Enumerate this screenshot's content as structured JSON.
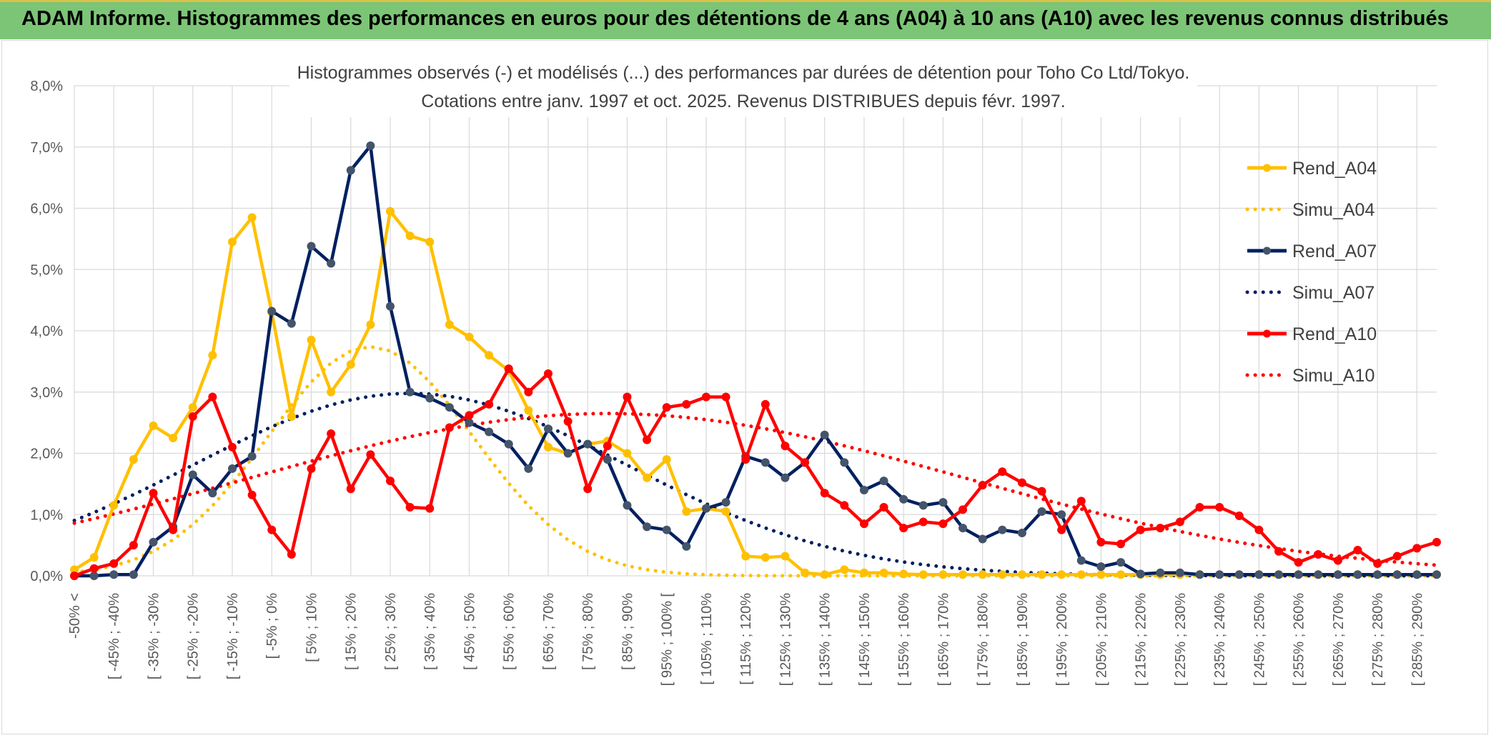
{
  "header": {
    "title": "ADAM Informe. Histogrammes des performances en euros pour des détentions de 4 ans (A04) à 10 ans (A10) avec les revenus connus distribués"
  },
  "chart_data": {
    "type": "line",
    "title_lines": [
      "Histogrammes observés (-) et modélisés (...) des performances par durées de détention pour Toho Co Ltd/Tokyo.",
      "Cotations entre janv. 1997 et oct. 2025. Revenus DISTRIBUES depuis févr. 1997."
    ],
    "xlabel": "",
    "ylabel": "",
    "ylim": [
      0,
      8
    ],
    "yticks": [
      "0,0%",
      "1,0%",
      "2,0%",
      "3,0%",
      "4,0%",
      "5,0%",
      "6,0%",
      "7,0%",
      "8,0%"
    ],
    "grid": true,
    "legend_position": "right",
    "x_labels": [
      "-50% <",
      "[ -45% ; -40%",
      "[ -35% ; -30%",
      "[ -25% ; -20%",
      "[ -15% ; -10%",
      "[ -5% ; 0%",
      "[ 5% ; 10%",
      "[ 15% ; 20%",
      "[ 25% ; 30%",
      "[ 35% ; 40%",
      "[ 45% ; 50%",
      "[ 55% ; 60%",
      "[ 65% ; 70%",
      "[ 75% ; 80%",
      "[ 85% ; 90%",
      "[ 95% ; 100% [",
      "[ 105% ; 110%",
      "[ 115% ; 120%",
      "[ 125% ; 130%",
      "[ 135% ; 140%",
      "[ 145% ; 150%",
      "[ 155% ; 160%",
      "[ 165% ; 170%",
      "[ 175% ; 180%",
      "[ 185% ; 190%",
      "[ 195% ; 200%",
      "[ 205% ; 210%",
      "[ 215% ; 220%",
      "[ 225% ; 230%",
      "[ 235% ; 240%",
      "[ 245% ; 250%",
      "[ 255% ; 260%",
      "[ 265% ; 270%",
      "[ 275% ; 280%",
      "[ 285% ; 290%"
    ],
    "series": [
      {
        "name": "Rend_A04",
        "style": "solid",
        "color": "#ffc000",
        "marker_color": "#ffc000",
        "values": [
          0.1,
          0.3,
          1.15,
          1.9,
          2.45,
          2.25,
          2.75,
          3.6,
          5.45,
          5.85,
          4.3,
          2.6,
          3.85,
          3.0,
          3.45,
          4.1,
          5.95,
          5.55,
          5.45,
          4.1,
          3.9,
          3.6,
          3.35,
          2.7,
          2.1,
          2.0,
          2.15,
          2.2,
          2.0,
          1.6,
          1.9,
          1.05,
          1.1,
          1.05,
          0.32,
          0.3,
          0.32,
          0.05,
          0.02,
          0.1,
          0.05,
          0.05,
          0.03,
          0.02,
          0.02,
          0.02,
          0.02,
          0.02,
          0.02,
          0.02,
          0.02,
          0.02,
          0.02,
          0.02,
          0.02,
          0.02,
          0.02,
          0.02,
          0.02,
          0.02,
          0.02,
          0.02,
          0.02,
          0.02,
          0.02,
          0.02,
          0.02,
          0.02,
          0.02,
          0.02
        ]
      },
      {
        "name": "Simu_A04",
        "style": "dotted",
        "color": "#ffc000",
        "mu": 25,
        "sigma": 26,
        "peak": 3.74
      },
      {
        "name": "Rend_A07",
        "style": "solid",
        "color": "#002060",
        "marker_color": "#44546a",
        "values": [
          0.0,
          0.0,
          0.02,
          0.02,
          0.55,
          0.8,
          1.65,
          1.35,
          1.75,
          1.95,
          4.32,
          4.12,
          5.38,
          5.1,
          6.62,
          7.02,
          4.4,
          3.0,
          2.9,
          2.75,
          2.5,
          2.35,
          2.15,
          1.75,
          2.4,
          2.0,
          2.15,
          1.9,
          1.15,
          0.8,
          0.75,
          0.48,
          1.1,
          1.2,
          1.95,
          1.85,
          1.6,
          1.85,
          2.3,
          1.85,
          1.4,
          1.55,
          1.25,
          1.15,
          1.2,
          0.78,
          0.6,
          0.75,
          0.7,
          1.05,
          1.0,
          0.25,
          0.15,
          0.22,
          0.03,
          0.05,
          0.05,
          0.02,
          0.02,
          0.02,
          0.02,
          0.02,
          0.02,
          0.02,
          0.02,
          0.02,
          0.02,
          0.02,
          0.02,
          0.02
        ]
      },
      {
        "name": "Simu_A07",
        "style": "dotted",
        "color": "#002060",
        "mu": 35,
        "sigma": 55,
        "peak": 2.98
      },
      {
        "name": "Rend_A10",
        "style": "solid",
        "color": "#ff0000",
        "marker_color": "#ff0000",
        "values": [
          0.0,
          0.12,
          0.2,
          0.5,
          1.35,
          0.75,
          2.6,
          2.92,
          2.1,
          1.32,
          0.75,
          0.35,
          1.75,
          2.32,
          1.42,
          1.98,
          1.55,
          1.12,
          1.1,
          2.42,
          2.62,
          2.8,
          3.38,
          3.0,
          3.3,
          2.52,
          1.42,
          2.12,
          2.92,
          2.22,
          2.75,
          2.8,
          2.92,
          2.92,
          1.9,
          2.8,
          2.12,
          1.85,
          1.35,
          1.15,
          0.85,
          1.12,
          0.78,
          0.88,
          0.85,
          1.08,
          1.48,
          1.7,
          1.52,
          1.38,
          0.75,
          1.22,
          0.55,
          0.52,
          0.75,
          0.78,
          0.88,
          1.12,
          1.12,
          0.98,
          0.75,
          0.4,
          0.22,
          0.35,
          0.25,
          0.42,
          0.2,
          0.32,
          0.45,
          0.55
        ]
      },
      {
        "name": "Simu_A10",
        "style": "dotted",
        "color": "#ff0000",
        "mu": 85,
        "sigma": 90,
        "peak": 2.65
      }
    ],
    "x_bin_start": -50,
    "x_bin_width": 5
  }
}
